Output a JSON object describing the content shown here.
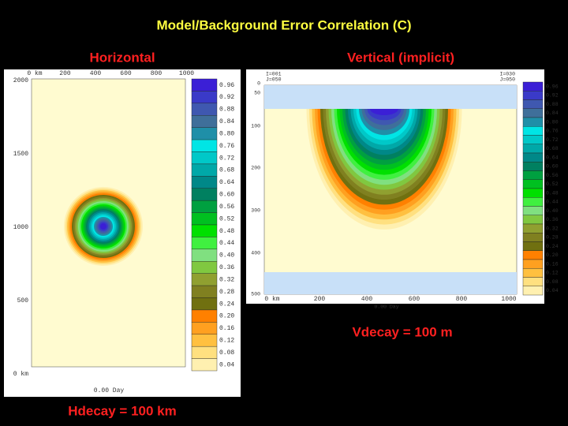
{
  "title": "Model/Background Error Correlation (C)",
  "palette": [
    "#3b1fd6",
    "#3a3ac8",
    "#3f58b0",
    "#3f6f9a",
    "#1f8fa8",
    "#00e5e5",
    "#00c8c8",
    "#00a8a8",
    "#008888",
    "#008060",
    "#00a040",
    "#00c020",
    "#00e000",
    "#40f040",
    "#80e080",
    "#80c840",
    "#90a030",
    "#808020",
    "#707010",
    "#ff8000",
    "#ffa020",
    "#ffc040",
    "#ffe080",
    "#fff0b0"
  ],
  "left": {
    "label": "Horizontal",
    "x_ticks": [
      "0 km",
      "200",
      "400",
      "600",
      "800",
      "1000"
    ],
    "y_ticks": [
      "2000",
      "1500",
      "1000",
      "500",
      "0 km"
    ],
    "colorbar": [
      "0.96",
      "0.92",
      "0.88",
      "0.84",
      "0.80",
      "0.76",
      "0.72",
      "0.68",
      "0.64",
      "0.60",
      "0.56",
      "0.52",
      "0.48",
      "0.44",
      "0.40",
      "0.36",
      "0.32",
      "0.28",
      "0.24",
      "0.20",
      "0.16",
      "0.12",
      "0.08",
      "0.04"
    ],
    "footer": "0.00 Day",
    "caption": "Hdecay = 100 km"
  },
  "right": {
    "label": "Vertical (implicit)",
    "corner_left": [
      "I=001",
      "J=050"
    ],
    "corner_right": [
      "I=030",
      "J=050"
    ],
    "x_ticks": [
      "0 km",
      "200",
      "400",
      "600",
      "800",
      "1000"
    ],
    "y_ticks": [
      "0",
      "50",
      "100",
      "200",
      "300",
      "400",
      "500"
    ],
    "colorbar": [
      "0.96",
      "0.92",
      "0.88",
      "0.84",
      "0.80",
      "0.76",
      "0.72",
      "0.68",
      "0.64",
      "0.60",
      "0.56",
      "0.52",
      "0.48",
      "0.44",
      "0.40",
      "0.36",
      "0.32",
      "0.28",
      "0.24",
      "0.20",
      "0.16",
      "0.12",
      "0.08",
      "0.04"
    ],
    "footer": "0.00 Day",
    "caption": "Vdecay = 100 m"
  }
}
